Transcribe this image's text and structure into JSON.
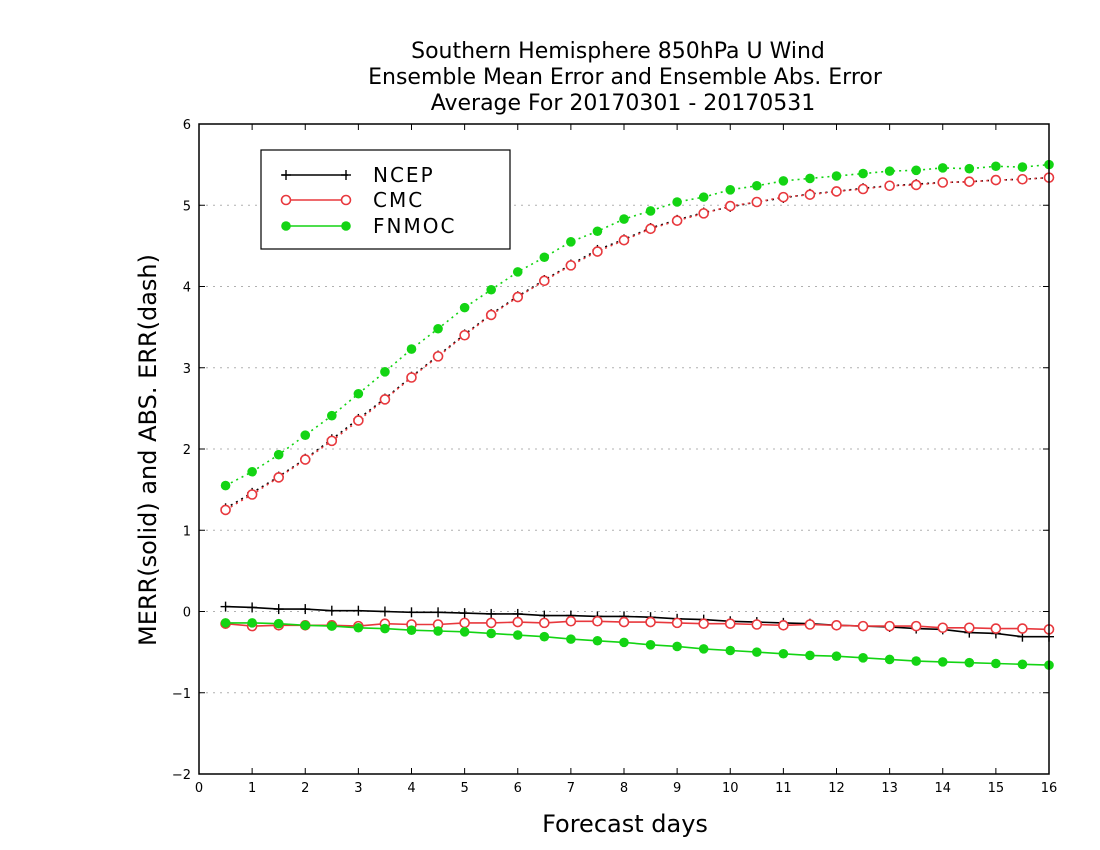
{
  "colors": {
    "ncep": "#000000",
    "cmc": "#e8383d",
    "fnmoc": "#13d413",
    "grid": "#b0b0b0",
    "cmc_marker": "#e8383d"
  },
  "chart_data": {
    "type": "line",
    "title": [
      "Southern Hemisphere 850hPa U Wind",
      "Ensemble Mean Error and Ensemble Abs. Error",
      "Average For 20170301 - 20170531"
    ],
    "xlabel": "Forecast days",
    "ylabel": "MERR(solid) and ABS. ERR(dash)",
    "xlim": [
      0,
      16
    ],
    "ylim": [
      -2,
      6
    ],
    "x_ticks": [
      "0",
      "1",
      "2",
      "3",
      "4",
      "5",
      "6",
      "7",
      "8",
      "9",
      "10",
      "11",
      "12",
      "13",
      "14",
      "15",
      "16"
    ],
    "y_ticks": [
      "−2",
      "−1",
      "0",
      "1",
      "2",
      "3",
      "4",
      "5",
      "6"
    ],
    "y_tick_values": [
      -2,
      -1,
      0,
      1,
      2,
      3,
      4,
      5,
      6
    ],
    "grid": "horizontal dotted",
    "legend": [
      "NCEP",
      "CMC",
      "FNMOC"
    ],
    "legend_placement": "top-left",
    "x": [
      0.5,
      1,
      1.5,
      2,
      2.5,
      3,
      3.5,
      4,
      4.5,
      5,
      5.5,
      6,
      6.5,
      7,
      7.5,
      8,
      8.5,
      9,
      9.5,
      10,
      10.5,
      11,
      11.5,
      12,
      12.5,
      13,
      13.5,
      14,
      14.5,
      15,
      15.5,
      16
    ],
    "series": [
      {
        "name": "NCEP",
        "style": "solid",
        "marker": "plus",
        "values": [
          0.06,
          0.05,
          0.03,
          0.03,
          0.01,
          0.01,
          0.0,
          -0.01,
          -0.01,
          -0.02,
          -0.03,
          -0.03,
          -0.05,
          -0.05,
          -0.06,
          -0.06,
          -0.07,
          -0.09,
          -0.1,
          -0.12,
          -0.13,
          -0.14,
          -0.15,
          -0.17,
          -0.18,
          -0.19,
          -0.21,
          -0.22,
          -0.26,
          -0.27,
          -0.31,
          -0.31
        ]
      },
      {
        "name": "NCEP",
        "style": "dash",
        "marker": "plus",
        "values": [
          1.27,
          1.46,
          1.66,
          1.88,
          2.12,
          2.37,
          2.62,
          2.89,
          3.15,
          3.41,
          3.66,
          3.88,
          4.08,
          4.27,
          4.45,
          4.58,
          4.72,
          4.82,
          4.91,
          4.98,
          5.04,
          5.09,
          5.14,
          5.17,
          5.21,
          5.24,
          5.26,
          5.28,
          5.29,
          5.31,
          5.32,
          5.34
        ]
      },
      {
        "name": "CMC",
        "style": "solid",
        "marker": "open-circle",
        "values": [
          -0.15,
          -0.18,
          -0.17,
          -0.17,
          -0.17,
          -0.18,
          -0.15,
          -0.16,
          -0.16,
          -0.14,
          -0.14,
          -0.13,
          -0.14,
          -0.12,
          -0.12,
          -0.13,
          -0.13,
          -0.14,
          -0.15,
          -0.15,
          -0.16,
          -0.17,
          -0.16,
          -0.17,
          -0.18,
          -0.18,
          -0.18,
          -0.2,
          -0.2,
          -0.21,
          -0.21,
          -0.22
        ]
      },
      {
        "name": "CMC",
        "style": "dash",
        "marker": "open-circle",
        "values": [
          1.25,
          1.44,
          1.65,
          1.87,
          2.1,
          2.35,
          2.61,
          2.88,
          3.14,
          3.4,
          3.65,
          3.87,
          4.07,
          4.26,
          4.43,
          4.57,
          4.71,
          4.81,
          4.9,
          4.99,
          5.04,
          5.1,
          5.13,
          5.17,
          5.2,
          5.24,
          5.25,
          5.28,
          5.29,
          5.31,
          5.32,
          5.34
        ]
      },
      {
        "name": "FNMOC",
        "style": "solid",
        "marker": "filled-circle",
        "values": [
          -0.14,
          -0.14,
          -0.15,
          -0.17,
          -0.18,
          -0.2,
          -0.21,
          -0.23,
          -0.24,
          -0.25,
          -0.27,
          -0.29,
          -0.31,
          -0.34,
          -0.36,
          -0.38,
          -0.41,
          -0.43,
          -0.46,
          -0.48,
          -0.5,
          -0.52,
          -0.54,
          -0.55,
          -0.57,
          -0.59,
          -0.61,
          -0.62,
          -0.63,
          -0.64,
          -0.65,
          -0.66
        ]
      },
      {
        "name": "FNMOC",
        "style": "dash",
        "marker": "filled-circle",
        "values": [
          1.55,
          1.72,
          1.93,
          2.17,
          2.41,
          2.68,
          2.95,
          3.23,
          3.48,
          3.74,
          3.96,
          4.18,
          4.36,
          4.55,
          4.68,
          4.83,
          4.93,
          5.04,
          5.1,
          5.19,
          5.24,
          5.3,
          5.33,
          5.36,
          5.39,
          5.42,
          5.43,
          5.46,
          5.45,
          5.48,
          5.47,
          5.5
        ]
      }
    ]
  }
}
